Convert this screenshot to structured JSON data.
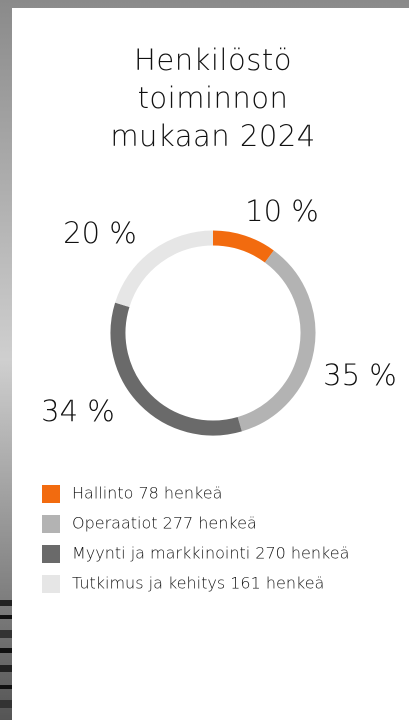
{
  "chart_data": {
    "type": "pie",
    "title_lines": [
      "Henkilöstö",
      "toiminnon",
      "mukaan 2024"
    ],
    "categories": [
      "Hallinto 78 henkeä",
      "Operaatiot 277 henkeä",
      "Myynti ja markkinointi 270 henkeä",
      "Tutkimus ja kehitys 161 henkeä"
    ],
    "values": [
      10,
      35,
      34,
      20
    ],
    "value_labels": [
      "10 %",
      "35 %",
      "34 %",
      "20 %"
    ],
    "colors": [
      "#f26b0f",
      "#b3b3b3",
      "#6a6a6a",
      "#e6e6e6"
    ]
  }
}
